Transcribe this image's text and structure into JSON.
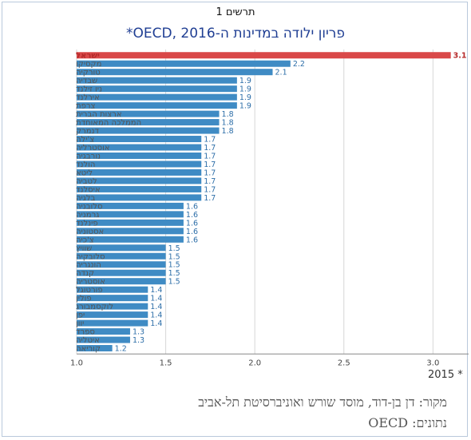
{
  "figure_label": "תרשים 1",
  "footer": {
    "year_note": "2015 *",
    "source": "מקור: דן בן-דוד, מוסד שורש ואוניברסיטת תל-אביב",
    "data_source": "נתונים: OECD"
  },
  "colors": {
    "highlight": "#d94848",
    "bar": "#3f8bc4",
    "value_text": "#2d6ea8",
    "highlight_text": "#b52a2a",
    "title": "#1f3e93"
  },
  "chart_data": {
    "type": "bar",
    "orientation": "horizontal",
    "title": "פריון ילודה במדינות ה-OECD, 2016*",
    "xlabel": "",
    "ylabel": "",
    "xlim": [
      1.0,
      3.2
    ],
    "xticks": [
      "1.0",
      "1.5",
      "2.0",
      "2.5",
      "3.0"
    ],
    "grid": true,
    "highlight_category": "ישראל",
    "categories": [
      "ישראל",
      "מקסיקו",
      "טורקיה",
      "שבדיה",
      "ניו זילנד",
      "אירלנד",
      "צרפת",
      "ארצות הברית",
      "הממלכה המאוחדת",
      "דנמרק",
      "צ'ילה",
      "אוסטרליה",
      "נורבגיה",
      "הולנד",
      "ליטא",
      "לטביה",
      "איסלנד",
      "בלגיה",
      "סלובניה",
      "גרמניה",
      "פינלנד",
      "אסטוניה",
      "צ'כיה",
      "שוויץ",
      "סלובקיה",
      "הונגריה",
      "קנדה",
      "אוסטריה",
      "פורטוגל",
      "פולין",
      "לוקסמבורג",
      "יפן",
      "יוון",
      "ספרד",
      "איטליה",
      "קוריאה"
    ],
    "values": [
      3.1,
      2.2,
      2.1,
      1.9,
      1.9,
      1.9,
      1.9,
      1.8,
      1.8,
      1.8,
      1.7,
      1.7,
      1.7,
      1.7,
      1.7,
      1.7,
      1.7,
      1.7,
      1.6,
      1.6,
      1.6,
      1.6,
      1.6,
      1.5,
      1.5,
      1.5,
      1.5,
      1.5,
      1.4,
      1.4,
      1.4,
      1.4,
      1.4,
      1.3,
      1.3,
      1.2
    ],
    "value_labels": [
      "3.1",
      "2.2",
      "2.1",
      "1.9",
      "1.9",
      "1.9",
      "1.9",
      "1.8",
      "1.8",
      "1.8",
      "1.7",
      "1.7",
      "1.7",
      "1.7",
      "1.7",
      "1.7",
      "1.7",
      "1.7",
      "1.6",
      "1.6",
      "1.6",
      "1.6",
      "1.6",
      "1.5",
      "1.5",
      "1.5",
      "1.5",
      "1.5",
      "1.4",
      "1.4",
      "1.4",
      "1.4",
      "1.4",
      "1.3",
      "1.3",
      "1.2"
    ]
  }
}
